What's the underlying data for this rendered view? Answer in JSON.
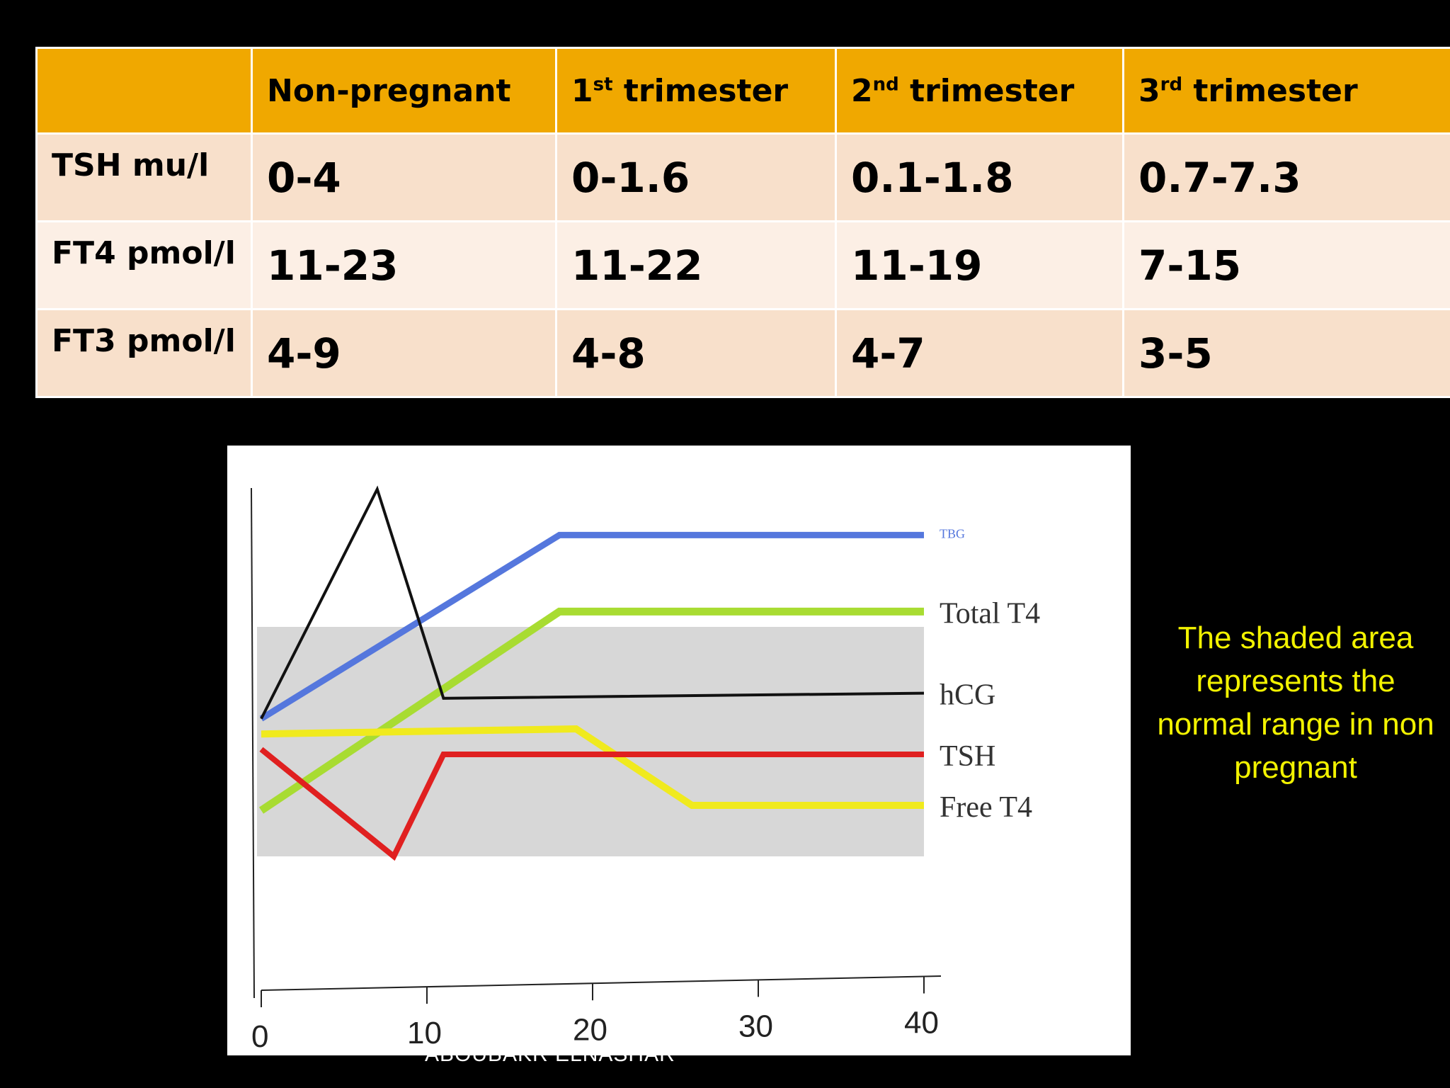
{
  "table": {
    "headers": [
      {
        "main": "",
        "sup": "",
        "rest": ""
      },
      {
        "main": "Non-pregnant",
        "sup": "",
        "rest": ""
      },
      {
        "main": "1",
        "sup": "st",
        "rest": " trimester"
      },
      {
        "main": "2",
        "sup": "nd",
        "rest": " trimester"
      },
      {
        "main": "3",
        "sup": "rd",
        "rest": " trimester"
      }
    ],
    "rows": [
      {
        "label": "TSH mu/l",
        "values": [
          "0-4",
          "0-1.6",
          "0.1-1.8",
          "0.7-7.3"
        ]
      },
      {
        "label": "FT4 pmol/l",
        "values": [
          "11-23",
          "11-22",
          "11-19",
          "7-15"
        ]
      },
      {
        "label": "FT3 pmol/l",
        "values": [
          "4-9",
          "4-8",
          "4-7",
          "3-5"
        ]
      }
    ],
    "colors": {
      "header": "#f0a800",
      "row_dark": "#f8e0cb",
      "row_light": "#fcefe5"
    }
  },
  "note": "The shaded area represents the normal range in non pregnant",
  "footer": "ABOUBAKR ELNASHAR",
  "chart_data": {
    "type": "line",
    "title": "",
    "xlabel": "",
    "ylabel": "",
    "x_ticks": [
      0,
      10,
      20,
      30,
      40
    ],
    "xlim": [
      0,
      40
    ],
    "ylim": [
      0,
      100
    ],
    "grid": false,
    "shaded_band": {
      "y": [
        25,
        70
      ],
      "color": "#d0d0d0"
    },
    "series": [
      {
        "name": "TBG",
        "color": "#5577dd",
        "points": [
          [
            0,
            52
          ],
          [
            18,
            88
          ],
          [
            40,
            88
          ]
        ]
      },
      {
        "name": "Total T4",
        "color": "#a8dc32",
        "points": [
          [
            0,
            34
          ],
          [
            18,
            73
          ],
          [
            40,
            73
          ]
        ]
      },
      {
        "name": "hCG",
        "color": "#111111",
        "points": [
          [
            0,
            52
          ],
          [
            7,
            97
          ],
          [
            11,
            56
          ],
          [
            40,
            57
          ]
        ]
      },
      {
        "name": "TSH",
        "color": "#e02020",
        "points": [
          [
            0,
            46
          ],
          [
            8,
            25
          ],
          [
            11,
            45
          ],
          [
            40,
            45
          ]
        ]
      },
      {
        "name": "Free T4",
        "color": "#f0ea1e",
        "points": [
          [
            0,
            49
          ],
          [
            19,
            50
          ],
          [
            26,
            35
          ],
          [
            40,
            35
          ]
        ]
      }
    ]
  }
}
